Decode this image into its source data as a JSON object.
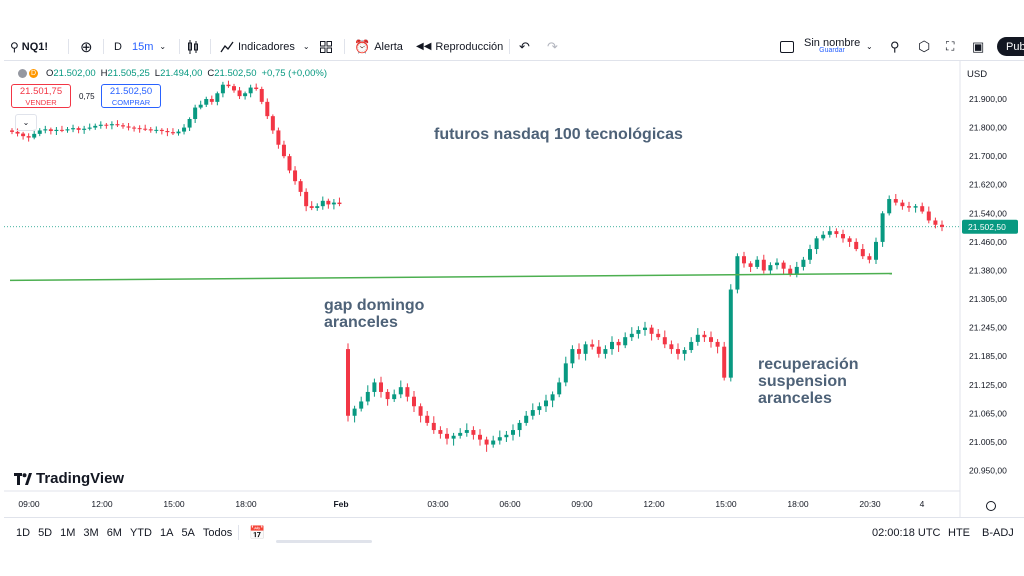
{
  "toolbar": {
    "symbol": "NQ1!",
    "interval_prefix": "D",
    "interval": "15m",
    "indicators_label": "Indicadores",
    "alert_label": "Alerta",
    "replay_label": "Reproducción",
    "layout_name": "Sin nombre",
    "save_label": "Guardar",
    "publish_label": "Pub"
  },
  "legend": {
    "symbol_badge": "D",
    "ohlc": [
      {
        "key": "O",
        "value": "21.502,00"
      },
      {
        "key": "H",
        "value": "21.505,25"
      },
      {
        "key": "L",
        "value": "21.494,00"
      },
      {
        "key": "C",
        "value": "21.502,50"
      }
    ],
    "change": "+0,75 (+0,00%)",
    "sell_price": "21.501,75",
    "sell_label": "VENDER",
    "spread": "0,75",
    "buy_price": "21.502,50",
    "buy_label": "COMPRAR"
  },
  "watermark": "TradingView",
  "bottom": {
    "ranges": [
      "1D",
      "5D",
      "1M",
      "3M",
      "6M",
      "YTD",
      "1A",
      "5A",
      "Todos"
    ],
    "time": "02:00:18 UTC",
    "hte": "HTE",
    "badj": "B-ADJ"
  },
  "colors": {
    "up": "#089981",
    "down": "#f23645",
    "line": "#4caf50",
    "accent": "#2962ff"
  },
  "chart_data": {
    "type": "candlestick",
    "title": "futuros nasdaq 100 tecnológicas",
    "currency": "USD",
    "y_ticks": [
      "21.900,00",
      "21.800,00",
      "21.700,00",
      "21.620,00",
      "21.540,00",
      "21.460,00",
      "21.380,00",
      "21.305,00",
      "21.245,00",
      "21.185,00",
      "21.125,00",
      "21.065,00",
      "21.005,00",
      "20.950,00"
    ],
    "x_ticks": [
      "09:00",
      "12:00",
      "15:00",
      "18:00",
      "Feb",
      "03:00",
      "06:00",
      "09:00",
      "12:00",
      "15:00",
      "18:00",
      "20:30",
      "4"
    ],
    "last_price": "21.502,50",
    "annotations": [
      {
        "lines": [
          "gap domingo",
          "aranceles"
        ]
      },
      {
        "lines": [
          "recuperación",
          "suspension",
          "aranceles"
        ]
      }
    ],
    "trendline": {
      "label": "gap domingo aranceles",
      "from": 21354,
      "to": 21372
    },
    "series": [
      {
        "session": "day1",
        "closes": [
          21785,
          21779,
          21770,
          21765,
          21778,
          21790,
          21794,
          21788,
          21792,
          21790,
          21794,
          21798,
          21792,
          21796,
          21800,
          21806,
          21810,
          21808,
          21812,
          21808,
          21804,
          21800,
          21798,
          21796,
          21794,
          21790,
          21792,
          21788,
          21784,
          21780,
          21786,
          21800,
          21830,
          21870,
          21880,
          21900,
          21890,
          21920,
          21950,
          21945,
          21930,
          21910,
          21920,
          21940,
          21935,
          21890,
          21840,
          21790,
          21740,
          21700,
          21660,
          21630,
          21600,
          21560,
          21555,
          21560,
          21575,
          21565,
          21570,
          21566
        ]
      },
      {
        "session": "day2",
        "closes": [
          21060,
          21075,
          21090,
          21110,
          21130,
          21110,
          21095,
          21105,
          21120,
          21100,
          21080,
          21060,
          21045,
          21030,
          21022,
          21012,
          21018,
          21024,
          21030,
          21020,
          21010,
          21000,
          21008,
          21015,
          21020,
          21030,
          21045,
          21060,
          21072,
          21080,
          21092,
          21105,
          21130,
          21170,
          21200,
          21190,
          21210,
          21205,
          21190,
          21200,
          21215,
          21208,
          21225,
          21232,
          21240,
          21245,
          21232,
          21225,
          21210,
          21200,
          21190,
          21198,
          21215,
          21230,
          21225,
          21215,
          21205,
          21140,
          21330,
          21420,
          21400,
          21390,
          21410,
          21380,
          21395,
          21402,
          21385,
          21370,
          21390,
          21410,
          21440,
          21470,
          21480,
          21490,
          21482,
          21470,
          21460,
          21440,
          21420,
          21410,
          21460,
          21540,
          21580,
          21570,
          21560,
          21556,
          21560,
          21545,
          21520,
          21508,
          21502
        ]
      }
    ]
  }
}
